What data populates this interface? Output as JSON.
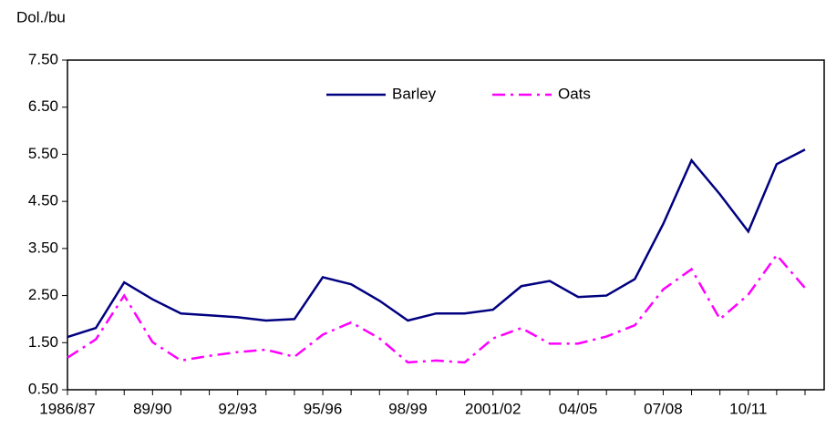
{
  "chart_data": {
    "type": "line",
    "y_label": "Dol./bu",
    "categories": [
      "1986/87",
      null,
      null,
      "89/90",
      null,
      null,
      "92/93",
      null,
      null,
      "95/96",
      null,
      null,
      "98/99",
      null,
      null,
      "2001/02",
      null,
      null,
      "04/05",
      null,
      null,
      "07/08",
      null,
      null,
      "10/11",
      null,
      null
    ],
    "series": [
      {
        "name": "Barley",
        "color": "#000080",
        "dash": "solid",
        "values": [
          1.62,
          1.81,
          2.78,
          2.42,
          2.12,
          2.08,
          2.04,
          1.97,
          2.0,
          2.89,
          2.74,
          2.39,
          1.97,
          2.12,
          2.12,
          2.2,
          2.7,
          2.81,
          2.47,
          2.5,
          2.85,
          4.02,
          5.37,
          4.65,
          3.86,
          5.29,
          5.6
        ]
      },
      {
        "name": "Oats",
        "color": "#ff00ff",
        "dash": "dashdot",
        "values": [
          1.18,
          1.57,
          2.5,
          1.51,
          1.12,
          1.22,
          1.3,
          1.35,
          1.2,
          1.67,
          1.93,
          1.59,
          1.08,
          1.12,
          1.08,
          1.59,
          1.81,
          1.48,
          1.48,
          1.63,
          1.87,
          2.63,
          3.06,
          2.0,
          2.52,
          3.36,
          2.66
        ]
      }
    ],
    "ylim": [
      0.5,
      7.5
    ],
    "yticks": [
      {
        "value": 0.5,
        "label": "0.50"
      },
      {
        "value": 1.5,
        "label": "1.50"
      },
      {
        "value": 2.5,
        "label": "2.50"
      },
      {
        "value": 3.5,
        "label": "3.50"
      },
      {
        "value": 4.5,
        "label": "4.50"
      },
      {
        "value": 5.5,
        "label": "5.50"
      },
      {
        "value": 6.5,
        "label": "6.50"
      },
      {
        "value": 7.5,
        "label": "7.50"
      }
    ],
    "grid": false,
    "legend": "top"
  }
}
